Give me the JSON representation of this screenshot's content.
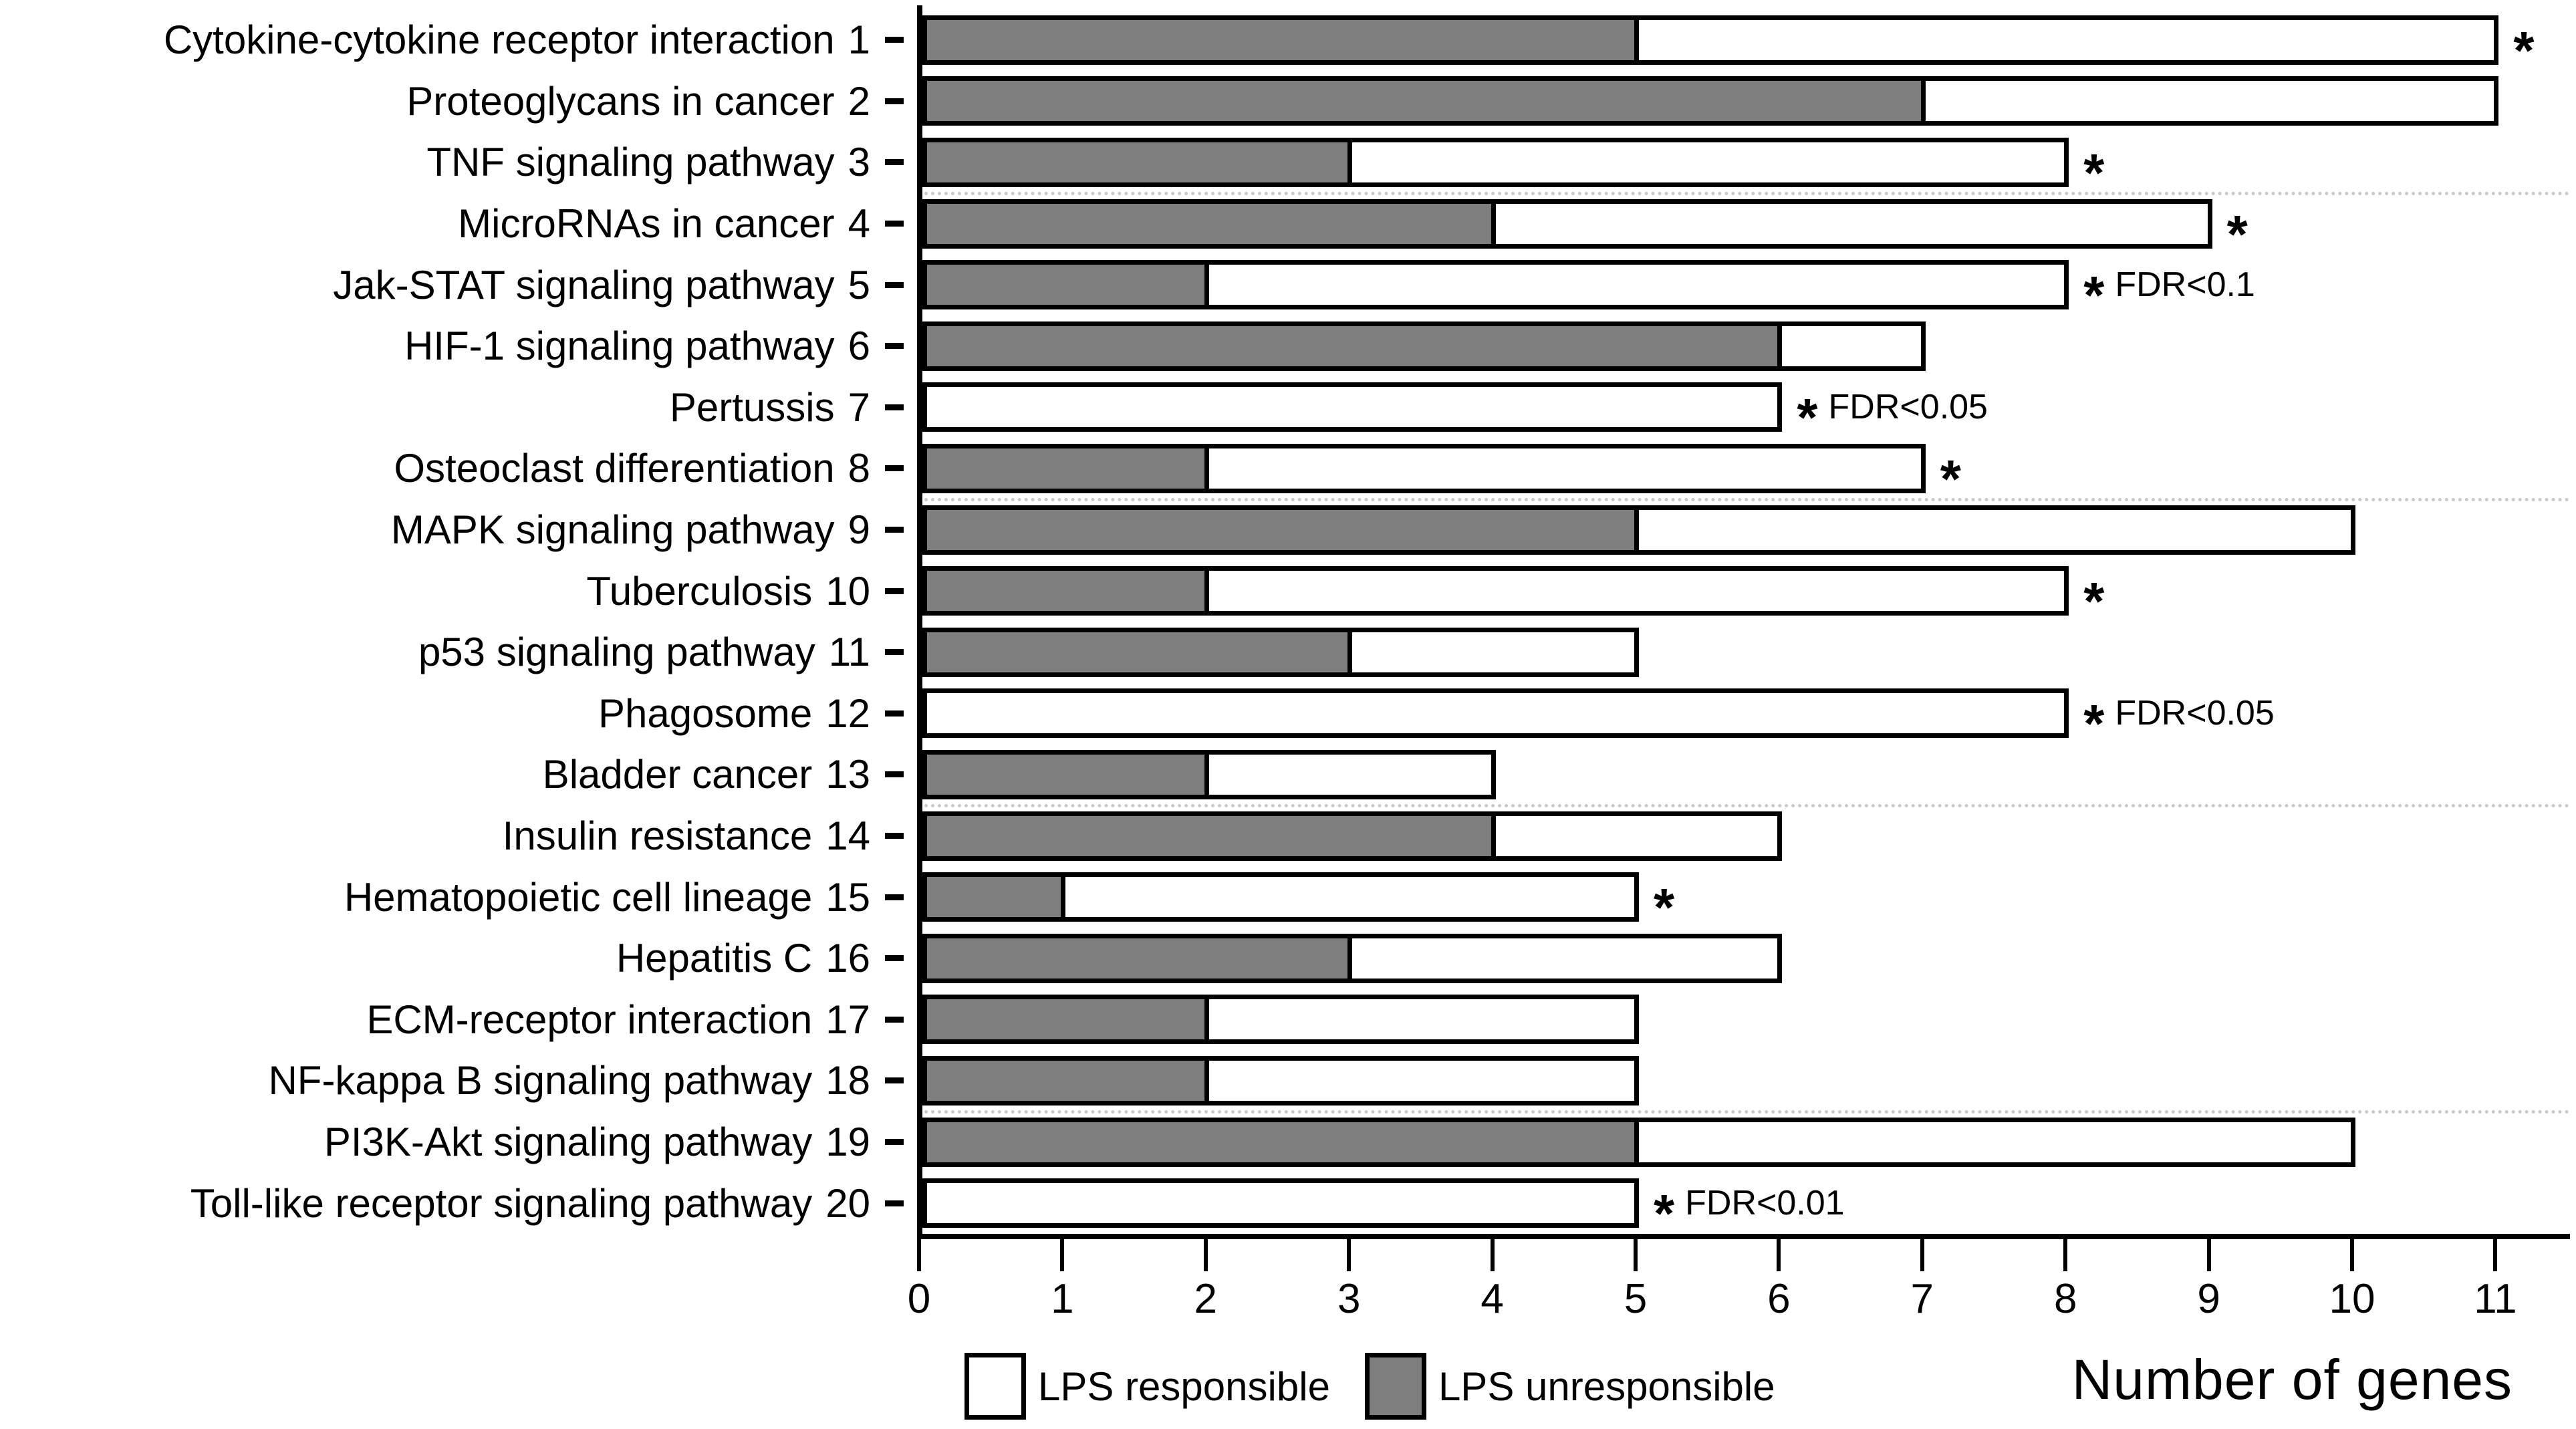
{
  "chart_data": {
    "type": "bar",
    "orientation": "horizontal",
    "stacked": true,
    "xlabel": "Number of genes",
    "ylabel": "",
    "xlim": [
      0,
      11
    ],
    "x_ticks": [
      0,
      1,
      2,
      3,
      4,
      5,
      6,
      7,
      8,
      9,
      10,
      11
    ],
    "grid": "dotted horizontal separators after rows 3, 8, 13, 18",
    "gridline_after_rows": [
      3,
      8,
      13,
      18
    ],
    "legend_position": "bottom",
    "legend": [
      {
        "label": "LPS responsible",
        "color": "#ffffff"
      },
      {
        "label": "LPS unresponsible",
        "color": "#7e7e7e"
      }
    ],
    "colors": {
      "responsible_fill": "#ffffff",
      "unresponsible_fill": "#7e7e7e",
      "bar_border": "#000000"
    },
    "categories": [
      "Cytokine-cytokine receptor interaction",
      "Proteoglycans in cancer",
      "TNF signaling pathway",
      "MicroRNAs in cancer",
      "Jak-STAT signaling pathway",
      "HIF-1 signaling pathway",
      "Pertussis",
      "Osteoclast differentiation",
      "MAPK signaling pathway",
      "Tuberculosis",
      "p53 signaling pathway",
      "Phagosome",
      "Bladder cancer",
      "Insulin resistance",
      "Hematopoietic cell lineage",
      "Hepatitis C",
      "ECM-receptor interaction",
      "NF-kappa B signaling pathway",
      "PI3K-Akt signaling pathway",
      "Toll-like receptor signaling pathway"
    ],
    "series": [
      {
        "name": "LPS unresponsible",
        "values": [
          5,
          7,
          3,
          4,
          2,
          6,
          0,
          2,
          5,
          2,
          3,
          0,
          2,
          4,
          1,
          3,
          2,
          2,
          5,
          0
        ]
      },
      {
        "name": "LPS responsible",
        "values": [
          6,
          4,
          5,
          5,
          6,
          1,
          6,
          5,
          5,
          6,
          2,
          8,
          2,
          2,
          4,
          3,
          3,
          3,
          5,
          5
        ]
      }
    ],
    "totals": [
      11,
      11,
      8,
      9,
      8,
      7,
      6,
      7,
      10,
      8,
      5,
      8,
      4,
      6,
      5,
      6,
      5,
      5,
      10,
      5
    ],
    "rows": [
      {
        "num": 1,
        "label": "Cytokine-cytokine receptor interaction",
        "unresponsible": 5,
        "responsible": 6,
        "star": true,
        "note": ""
      },
      {
        "num": 2,
        "label": "Proteoglycans in cancer",
        "unresponsible": 7,
        "responsible": 4,
        "star": false,
        "note": ""
      },
      {
        "num": 3,
        "label": "TNF signaling pathway",
        "unresponsible": 3,
        "responsible": 5,
        "star": true,
        "note": ""
      },
      {
        "num": 4,
        "label": "MicroRNAs in cancer",
        "unresponsible": 4,
        "responsible": 5,
        "star": true,
        "note": ""
      },
      {
        "num": 5,
        "label": "Jak-STAT signaling pathway",
        "unresponsible": 2,
        "responsible": 6,
        "star": true,
        "note": "FDR<0.1"
      },
      {
        "num": 6,
        "label": "HIF-1 signaling pathway",
        "unresponsible": 6,
        "responsible": 1,
        "star": false,
        "note": ""
      },
      {
        "num": 7,
        "label": "Pertussis",
        "unresponsible": 0,
        "responsible": 6,
        "star": true,
        "note": "FDR<0.05"
      },
      {
        "num": 8,
        "label": "Osteoclast differentiation",
        "unresponsible": 2,
        "responsible": 5,
        "star": true,
        "note": ""
      },
      {
        "num": 9,
        "label": "MAPK signaling pathway",
        "unresponsible": 5,
        "responsible": 5,
        "star": false,
        "note": ""
      },
      {
        "num": 10,
        "label": "Tuberculosis",
        "unresponsible": 2,
        "responsible": 6,
        "star": true,
        "note": ""
      },
      {
        "num": 11,
        "label": "p53 signaling pathway",
        "unresponsible": 3,
        "responsible": 2,
        "star": false,
        "note": ""
      },
      {
        "num": 12,
        "label": "Phagosome",
        "unresponsible": 0,
        "responsible": 8,
        "star": true,
        "note": "FDR<0.05"
      },
      {
        "num": 13,
        "label": "Bladder cancer",
        "unresponsible": 2,
        "responsible": 2,
        "star": false,
        "note": ""
      },
      {
        "num": 14,
        "label": "Insulin resistance",
        "unresponsible": 4,
        "responsible": 2,
        "star": false,
        "note": ""
      },
      {
        "num": 15,
        "label": "Hematopoietic cell lineage",
        "unresponsible": 1,
        "responsible": 4,
        "star": true,
        "note": ""
      },
      {
        "num": 16,
        "label": "Hepatitis C",
        "unresponsible": 3,
        "responsible": 3,
        "star": false,
        "note": ""
      },
      {
        "num": 17,
        "label": "ECM-receptor interaction",
        "unresponsible": 2,
        "responsible": 3,
        "star": false,
        "note": ""
      },
      {
        "num": 18,
        "label": "NF-kappa B signaling pathway",
        "unresponsible": 2,
        "responsible": 3,
        "star": false,
        "note": ""
      },
      {
        "num": 19,
        "label": "PI3K-Akt signaling pathway",
        "unresponsible": 5,
        "responsible": 5,
        "star": false,
        "note": ""
      },
      {
        "num": 20,
        "label": "Toll-like receptor signaling pathway",
        "unresponsible": 0,
        "responsible": 5,
        "star": true,
        "note": "FDR<0.01"
      }
    ],
    "star_symbol": "*"
  }
}
